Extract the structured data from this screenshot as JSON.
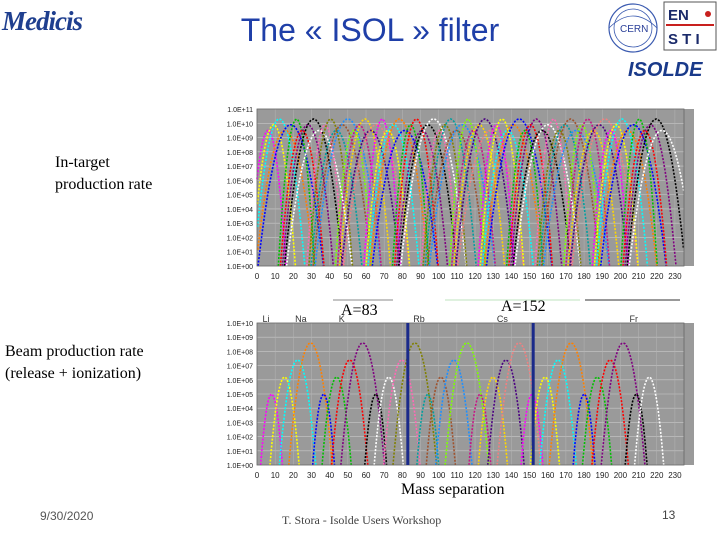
{
  "header": {
    "title": "The  « ISOL » filter",
    "logo_left": "Medicis",
    "logo_right_cern": "CERN",
    "logo_right_en": "EN",
    "logo_right_sti": "S T I",
    "logo_right_isolde": "ISOLDE"
  },
  "labels": {
    "in_target_line1": "In-target",
    "in_target_line2": "production rate",
    "beam_line1": "Beam production rate",
    "beam_line2": "(release + ionization)",
    "a83": "A=83",
    "a152": "A=152",
    "mass_separation": "Mass separation"
  },
  "footer": {
    "date": "9/30/2020",
    "text": "T. Stora - Isolde Users Workshop",
    "page": "13"
  },
  "colors": {
    "title": "#1f3fa8",
    "plot_bg": "#9a9a9a",
    "separation_line": "#1a2a8a"
  },
  "chart_data": [
    {
      "type": "line",
      "ylabel": "",
      "xlabel": "",
      "y_ticks": [
        "1.0E+11",
        "1.0E+10",
        "1.0E+09",
        "1.0E+08",
        "1.0E+07",
        "1.0E+06",
        "1.0E+05",
        "1.0E+04",
        "1.0E+03",
        "1.0E+02",
        "1.0E+01",
        "1.0E+00"
      ],
      "x_ticks": [
        "0",
        "10",
        "20",
        "30",
        "40",
        "50",
        "60",
        "70",
        "80",
        "90",
        "100",
        "110",
        "120",
        "130",
        "140",
        "150",
        "160",
        "170",
        "180",
        "190",
        "200",
        "210",
        "220",
        "230"
      ],
      "xlim": [
        0,
        235
      ],
      "ylim": [
        0,
        11
      ],
      "grid": true
    },
    {
      "type": "line",
      "element_labels": [
        "Li",
        "Na",
        "K",
        "Rb",
        "Cs",
        "Fr"
      ],
      "y_ticks": [
        "1.0E+10",
        "1.0E+09",
        "1.0E+08",
        "1.0E+07",
        "1.0E+06",
        "1.0E+05",
        "1.0E+04",
        "1.0E+03",
        "1.0E+02",
        "1.0E+01",
        "1.0E+00"
      ],
      "x_ticks": [
        "0",
        "10",
        "20",
        "30",
        "40",
        "50",
        "60",
        "70",
        "80",
        "90",
        "100",
        "110",
        "120",
        "130",
        "140",
        "150",
        "160",
        "170",
        "180",
        "190",
        "200",
        "210",
        "220",
        "230"
      ],
      "xlim": [
        0,
        235
      ],
      "ylim": [
        0,
        10
      ],
      "separation_masses": [
        83,
        152
      ],
      "grid": true
    }
  ]
}
